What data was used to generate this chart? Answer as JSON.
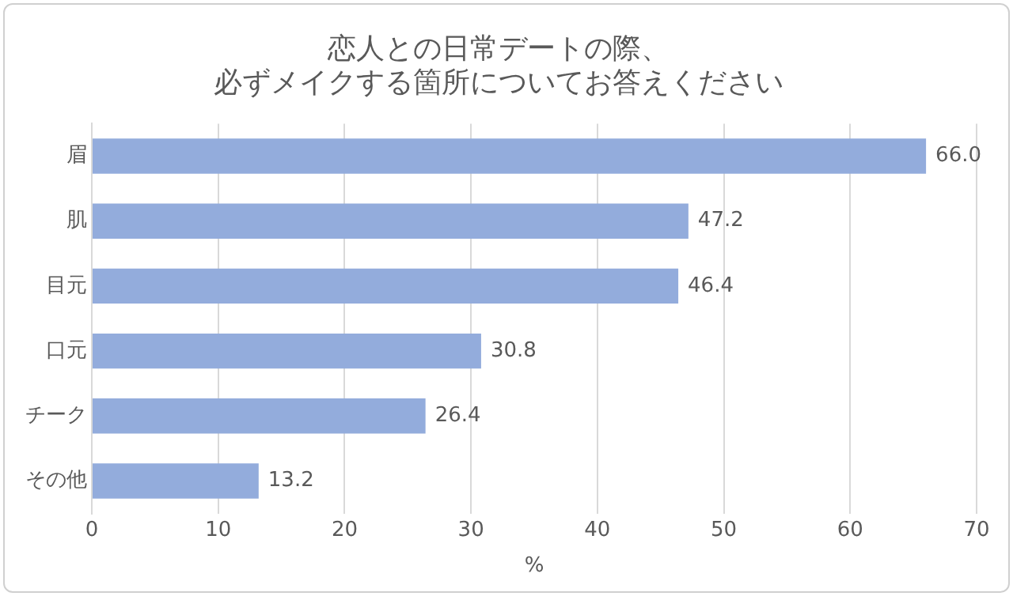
{
  "chart_data": {
    "type": "bar",
    "orientation": "horizontal",
    "title": [
      "恋人との日常デートの際、",
      "必ずメイクする箇所についてお答えください"
    ],
    "categories": [
      "眉",
      "肌",
      "目元",
      "口元",
      "チーク",
      "その他"
    ],
    "values": [
      66.0,
      47.2,
      46.4,
      30.8,
      26.4,
      13.2
    ],
    "value_labels": [
      "66.0",
      "47.2",
      "46.4",
      "30.8",
      "26.4",
      "13.2"
    ],
    "color": "#93acdc",
    "xlabel": "%",
    "xlim": [
      0,
      70
    ],
    "xticks": [
      0,
      10,
      20,
      30,
      40,
      50,
      60,
      70
    ],
    "grid": "x",
    "legend": false
  }
}
